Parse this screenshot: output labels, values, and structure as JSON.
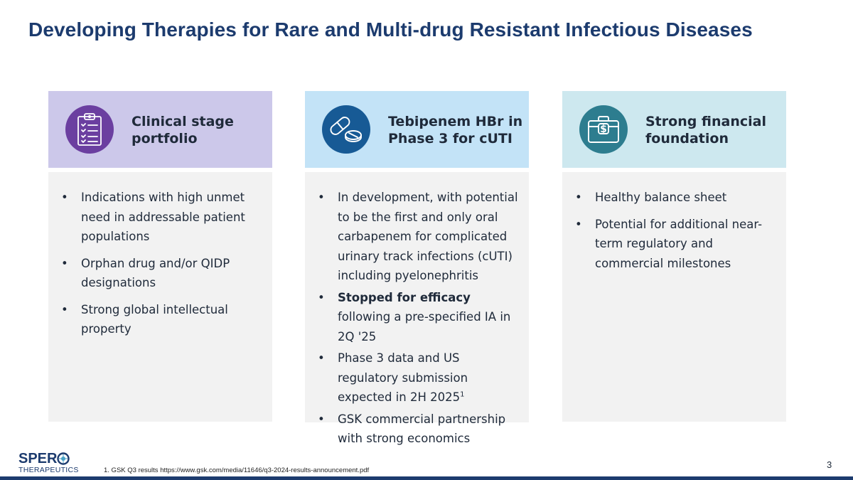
{
  "title": "Developing Therapies for Rare and Multi-drug Resistant Infectious Diseases",
  "colors": {
    "title": "#1c3b6e",
    "head_1": "#ccc8ea",
    "head_2": "#c3e3f7",
    "head_3": "#cde8ef",
    "icon_1": "#6b3fa0",
    "icon_2": "#175a95",
    "icon_3": "#2d7d8f",
    "body_bg": "#f2f2f2"
  },
  "columns": [
    {
      "icon": "clipboard-checklist-icon",
      "heading": "Clinical stage portfolio",
      "bullets": [
        "Indications with high unmet need in addressable patient populations",
        "Orphan drug and/or QIDP designations",
        "Strong global intellectual property"
      ]
    },
    {
      "icon": "pill-capsule-icon",
      "heading": "Tebipenem HBr in Phase 3 for cUTI",
      "bullets": [
        "In development, with potential to be the first and only oral carbapenem for complicated urinary track infections (cUTI) including pyelonephritis",
        {
          "bold": "Stopped for efficacy",
          "rest": " following a pre-specified IA in 2Q '25"
        },
        {
          "text": "Phase 3 data and US regulatory submission expected in 2H 2025",
          "sup": "1"
        },
        "GSK commercial partnership with strong economics"
      ]
    },
    {
      "icon": "briefcase-dollar-icon",
      "heading": "Strong financial foundation",
      "bullets": [
        "Healthy balance sheet",
        "Potential for additional near-term regulatory and commercial milestones"
      ]
    }
  ],
  "logo": {
    "name": "SPER",
    "subtitle": "THERAPEUTICS"
  },
  "footnote": "1. GSK Q3 results https://www.gsk.com/media/11646/q3-2024-results-announcement.pdf",
  "page_number": "3"
}
